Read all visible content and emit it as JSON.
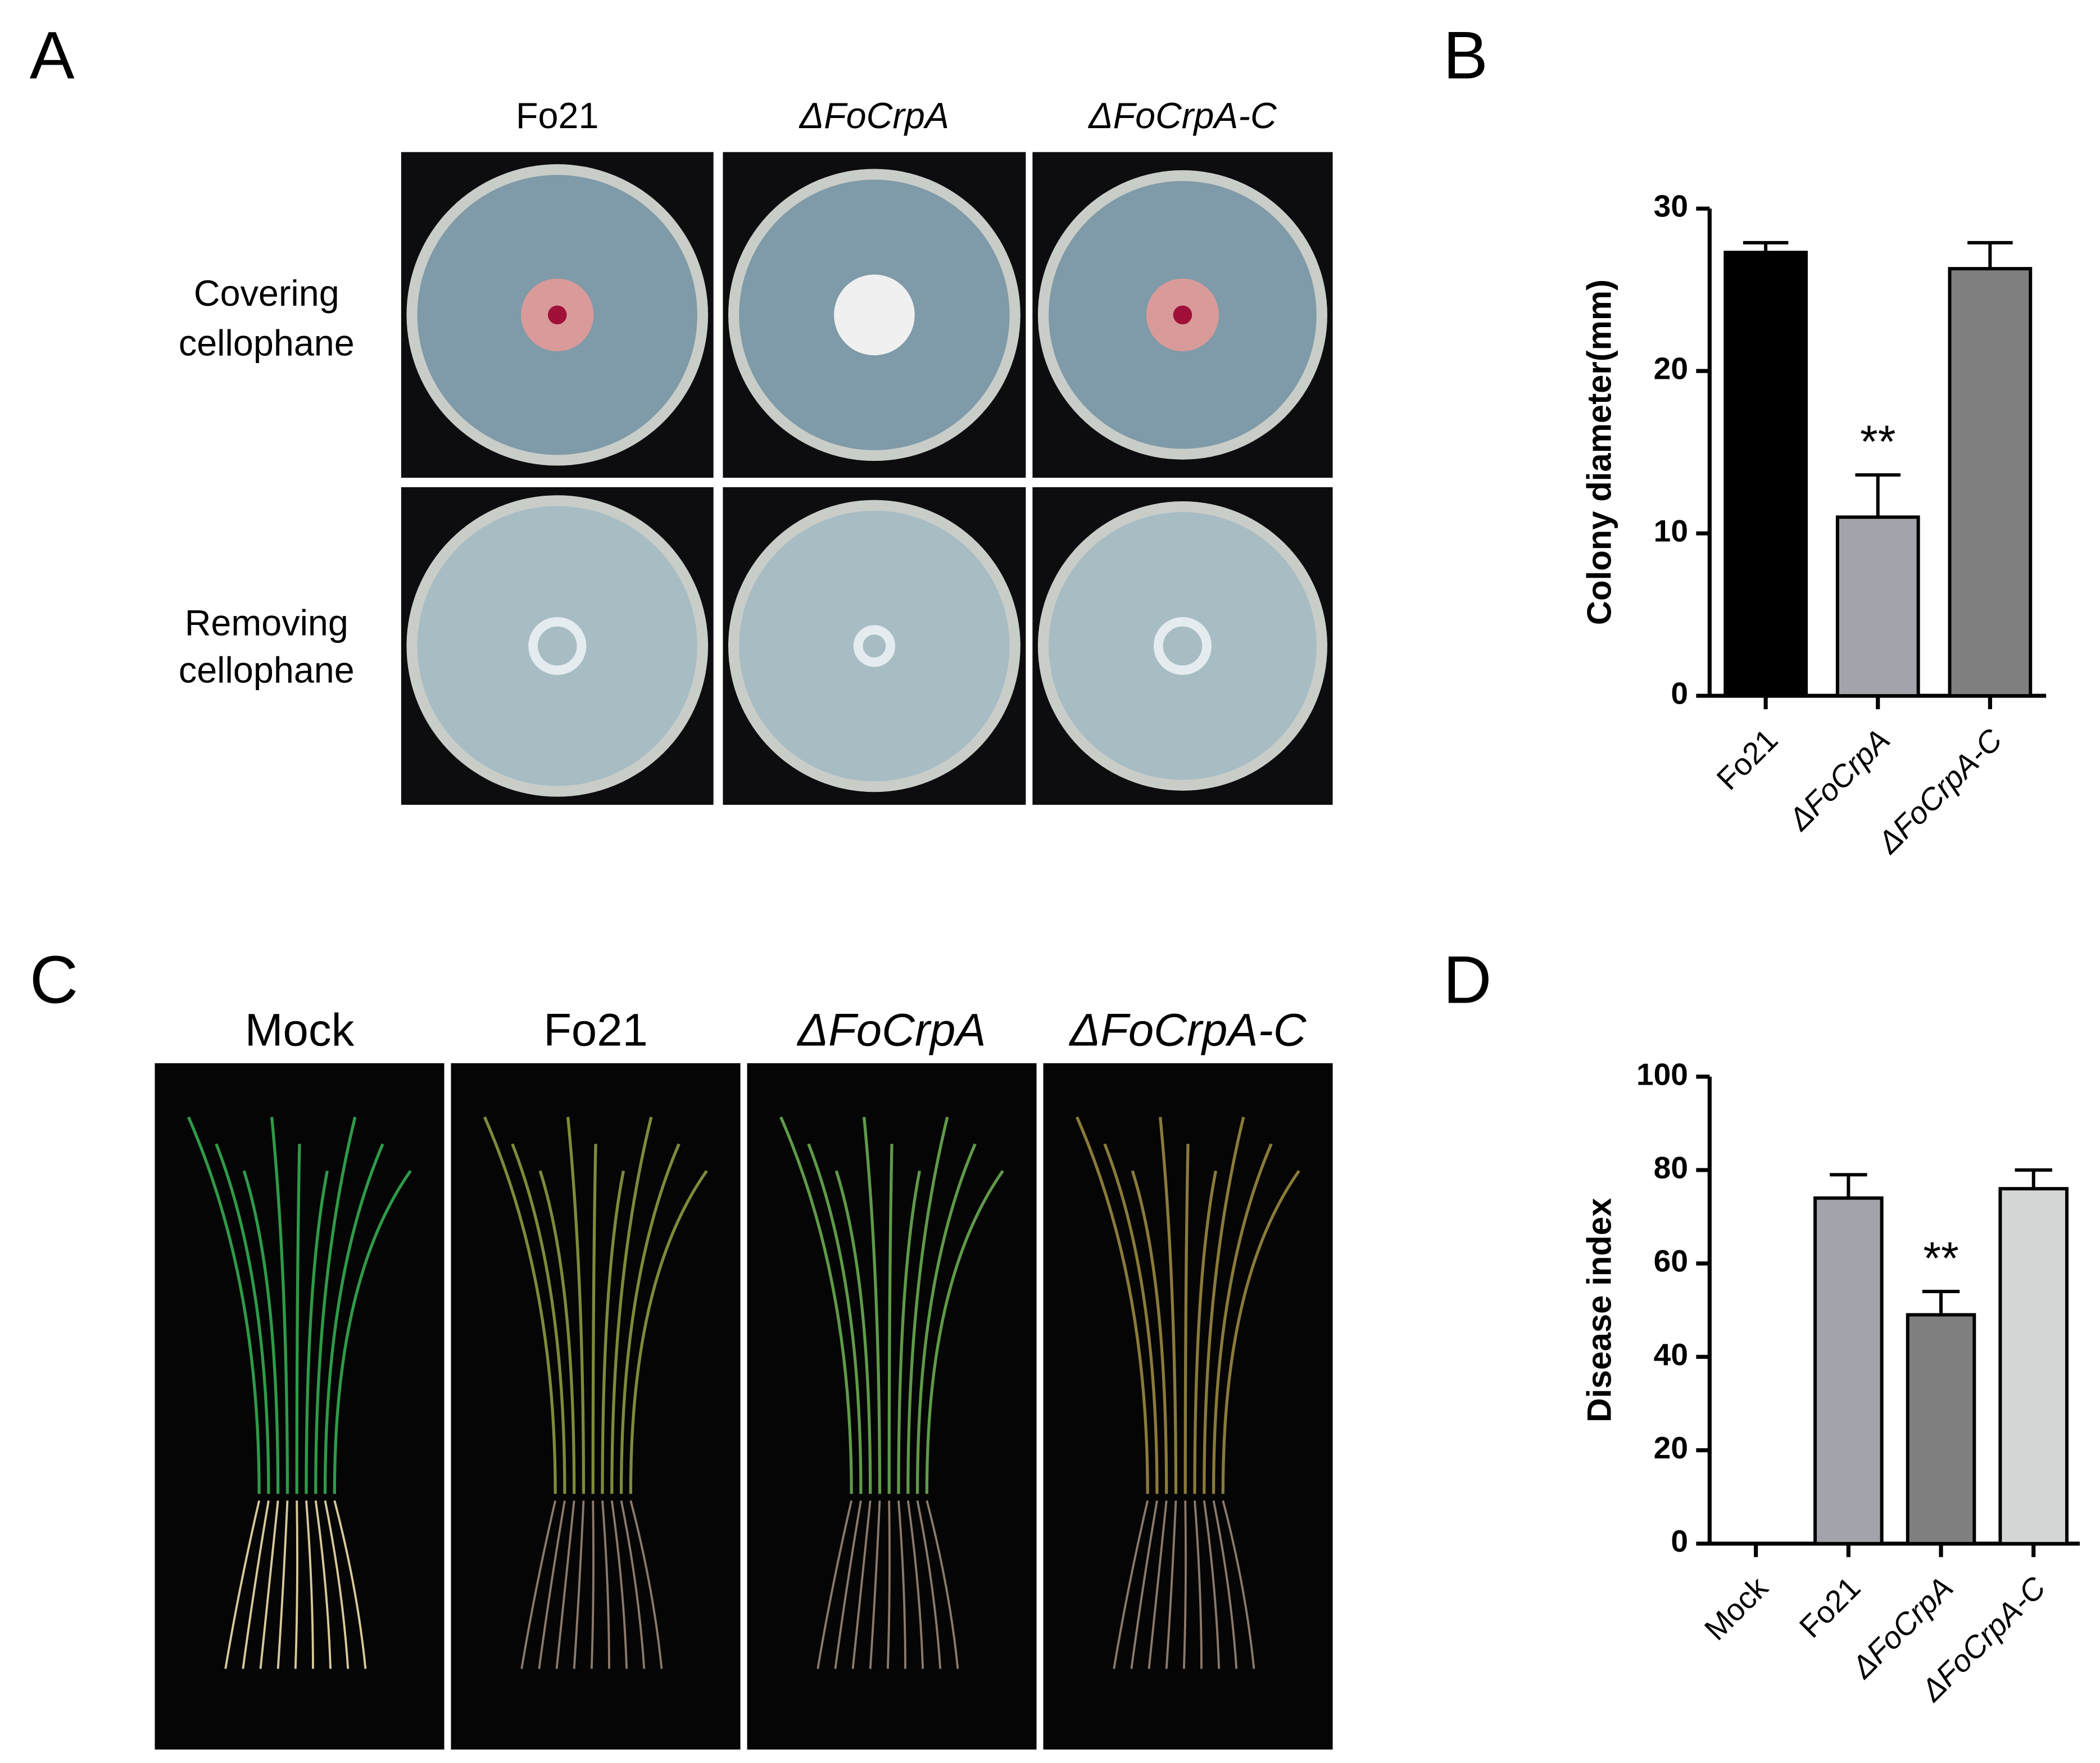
{
  "labels": [
    "A",
    "B",
    "C",
    "D"
  ],
  "panel_a": {
    "columns": [
      "Fo21",
      "ΔFoCrpA",
      "ΔFoCrpA-C"
    ],
    "rows": [
      [
        "Covering",
        "cellophane"
      ],
      [
        "Removing",
        "cellophane"
      ]
    ]
  },
  "panel_c": {
    "columns": [
      "Mock",
      "Fo21",
      "ΔFoCrpA",
      "ΔFoCrpA-C"
    ]
  },
  "chart_data": [
    {
      "type": "bar",
      "y_label": "Colony diameter(mm)",
      "categories": [
        "Fo21",
        "ΔFoCrpA",
        "ΔFoCrpA-C"
      ],
      "values": [
        27.3,
        11,
        26.3
      ],
      "errors": [
        0.6,
        2.6,
        1.6
      ],
      "colors": [
        "#000000",
        "#a3a3ab",
        "#7f7f7f"
      ],
      "ylim": [
        0,
        30
      ],
      "yticks": [
        0,
        10,
        20,
        30
      ],
      "annotations": [
        {
          "text": "**",
          "x": "ΔFoCrpA"
        }
      ]
    },
    {
      "type": "bar",
      "y_label": "Disease index",
      "categories": [
        "Mock",
        "Fo21",
        "ΔFoCrpA",
        "ΔFoCrpA-C"
      ],
      "values": [
        0,
        74,
        49,
        76
      ],
      "errors": [
        0,
        5,
        5,
        4
      ],
      "colors": [
        "#a3a3ab",
        "#a3a3ab",
        "#7f7f7f",
        "#d5d7d7"
      ],
      "ylim": [
        0,
        100
      ],
      "yticks": [
        0,
        20,
        40,
        60,
        80,
        100
      ],
      "annotations": [
        {
          "text": "**",
          "x": "ΔFoCrpA"
        }
      ]
    }
  ]
}
